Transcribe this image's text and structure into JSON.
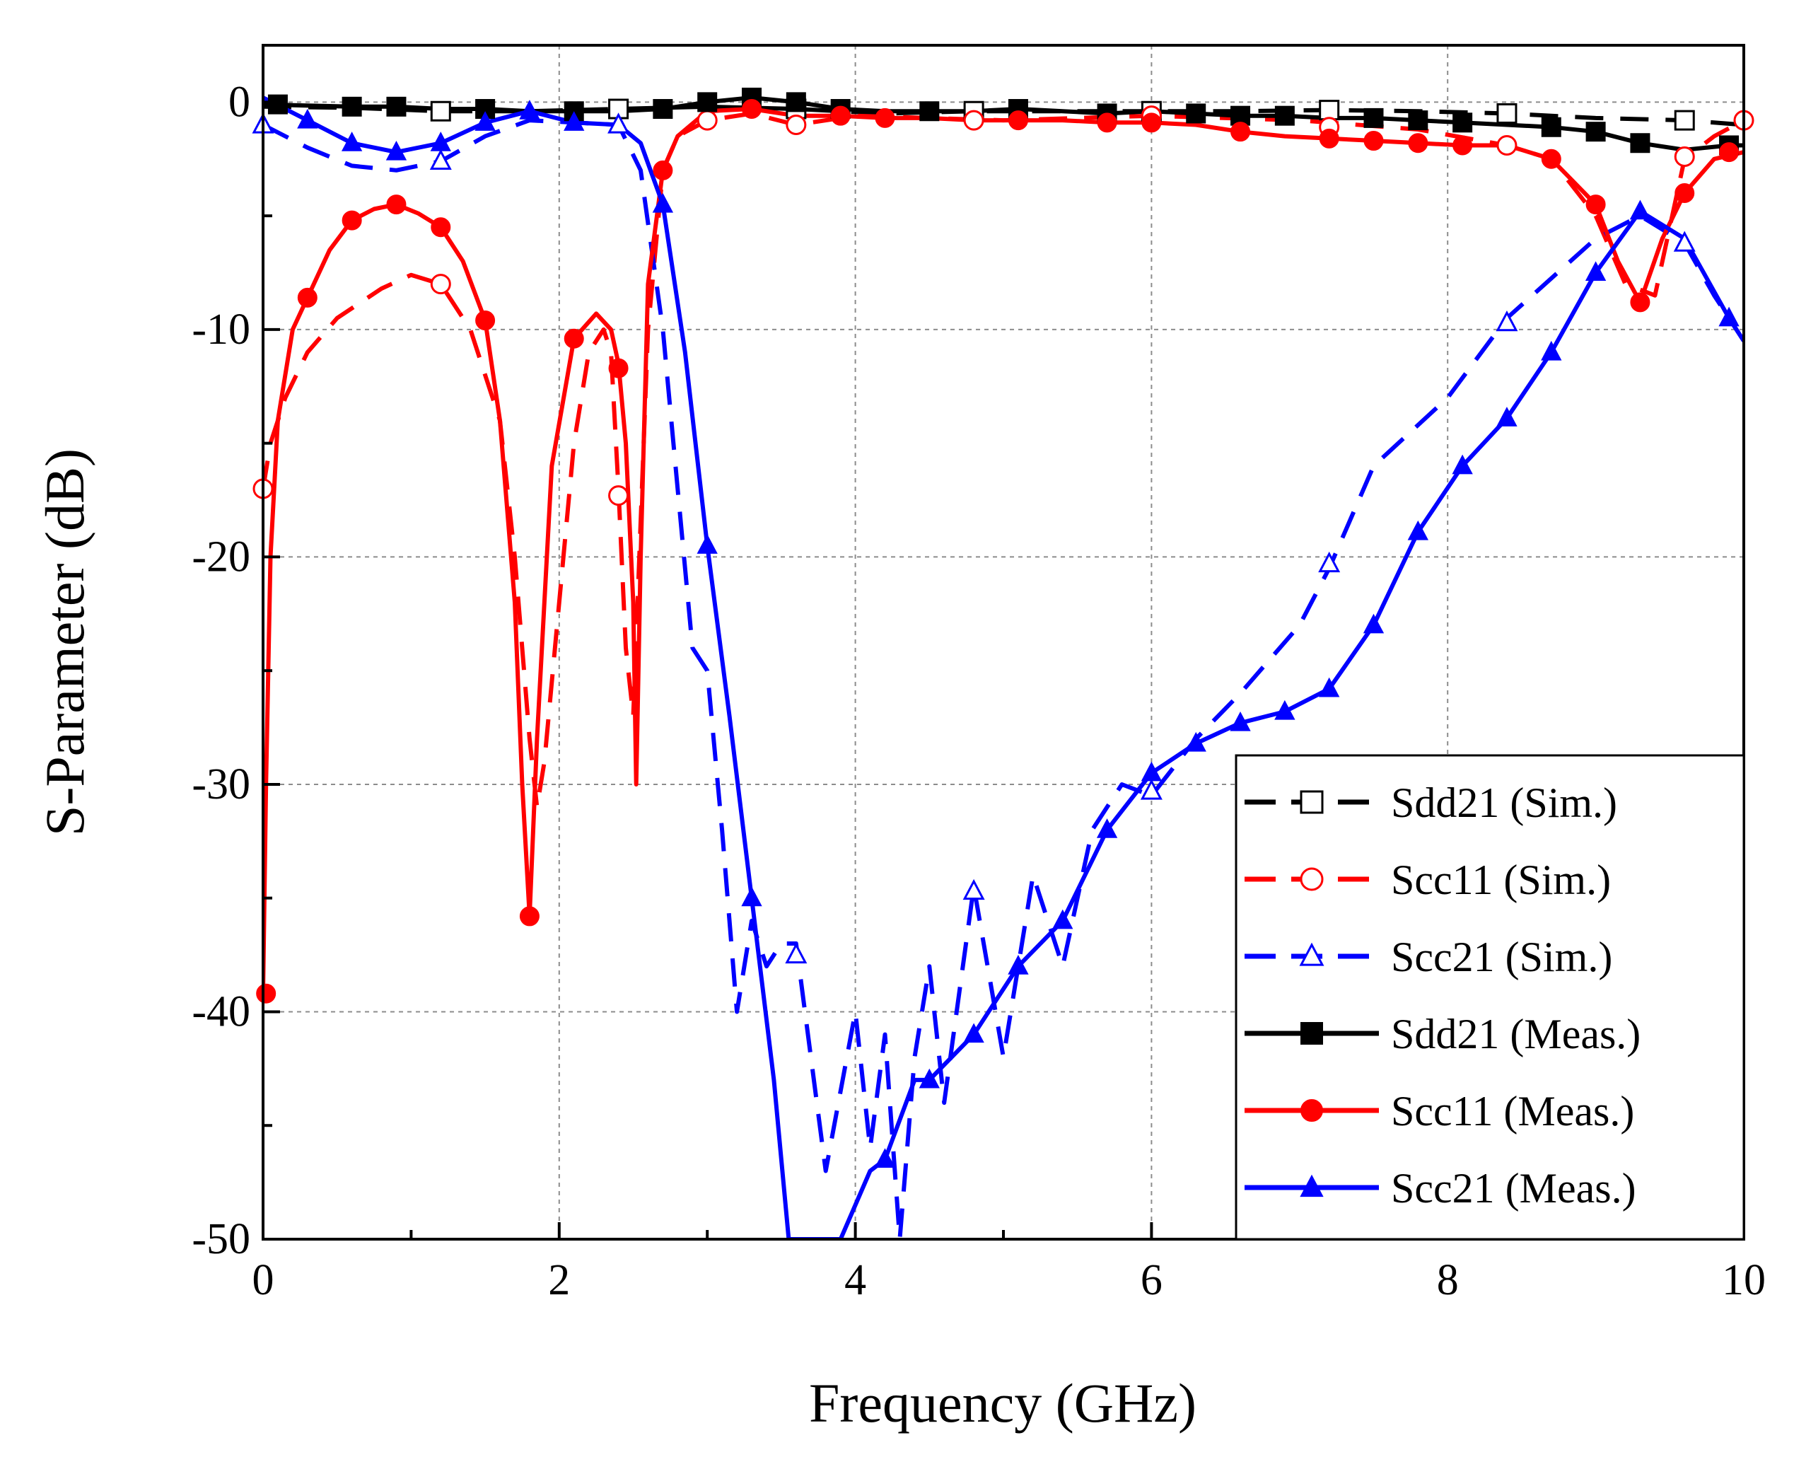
{
  "chart_data": {
    "type": "line",
    "title": "",
    "xlabel": "Frequency (GHz)",
    "ylabel": "S-Parameter (dB)",
    "xlim": [
      0,
      10
    ],
    "ylim": [
      -50,
      2.5
    ],
    "x_ticks": [
      0,
      2,
      4,
      6,
      8,
      10
    ],
    "x_tick_labels": [
      "0",
      "2",
      "4",
      "6",
      "8",
      "10"
    ],
    "y_ticks": [
      0,
      -10,
      -20,
      -30,
      -40,
      -50
    ],
    "y_tick_labels": [
      "0",
      "-10",
      "-20",
      "-30",
      "-40",
      "-50"
    ],
    "grid": true,
    "legend_position": "bottom-right",
    "series": [
      {
        "name": "Sdd21 (Sim.)",
        "color": "#000000",
        "dash": true,
        "marker": "square",
        "filled": false,
        "x": [
          0,
          0.6,
          1.2,
          1.8,
          2.4,
          3.0,
          3.6,
          4.2,
          4.8,
          5.4,
          6.0,
          6.6,
          7.2,
          7.8,
          8.4,
          9.0,
          9.6,
          10.0
        ],
        "y": [
          -0.2,
          -0.25,
          -0.4,
          -0.4,
          -0.3,
          -0.2,
          -0.3,
          -0.5,
          -0.4,
          -0.4,
          -0.4,
          -0.4,
          -0.35,
          -0.4,
          -0.5,
          -0.7,
          -0.8,
          -1.0
        ],
        "markers": [
          [
            1.2,
            -0.4
          ],
          [
            2.4,
            -0.3
          ],
          [
            3.6,
            -0.3
          ],
          [
            4.8,
            -0.4
          ],
          [
            6.0,
            -0.4
          ],
          [
            7.2,
            -0.35
          ],
          [
            8.4,
            -0.5
          ],
          [
            9.6,
            -0.8
          ]
        ]
      },
      {
        "name": "Scc11 (Sim.)",
        "color": "#ff0000",
        "dash": true,
        "marker": "circle",
        "filled": false,
        "x": [
          0,
          0.05,
          0.15,
          0.3,
          0.5,
          0.8,
          1.0,
          1.2,
          1.4,
          1.6,
          1.7,
          1.8,
          1.85,
          1.9,
          2.0,
          2.1,
          2.2,
          2.3,
          2.35,
          2.4,
          2.45,
          2.5,
          2.6,
          2.7,
          2.8,
          3.0,
          3.3,
          3.6,
          4.0,
          5.0,
          6.0,
          7.0,
          7.8,
          8.4,
          8.7,
          9.0,
          9.2,
          9.4,
          9.6,
          9.8,
          10.0
        ],
        "y": [
          -17,
          -15,
          -13,
          -11,
          -9.5,
          -8.2,
          -7.6,
          -8.0,
          -10,
          -14,
          -20,
          -28,
          -31,
          -29,
          -22,
          -15,
          -11,
          -10,
          -11,
          -17,
          -24,
          -27,
          -10,
          -3,
          -1.5,
          -0.8,
          -0.5,
          -1.0,
          -0.6,
          -0.8,
          -0.6,
          -0.8,
          -1.2,
          -1.9,
          -2.5,
          -5.0,
          -8.0,
          -8.5,
          -2.5,
          -1.5,
          -0.8
        ],
        "markers": [
          [
            0,
            -17
          ],
          [
            1.2,
            -8.0
          ],
          [
            2.4,
            -17.3
          ],
          [
            3.0,
            -0.8
          ],
          [
            3.6,
            -1.0
          ],
          [
            4.8,
            -0.8
          ],
          [
            6.0,
            -0.6
          ],
          [
            7.2,
            -1.1
          ],
          [
            8.4,
            -1.9
          ],
          [
            9.6,
            -2.4
          ],
          [
            10.0,
            -0.8
          ]
        ]
      },
      {
        "name": "Scc21 (Sim.)",
        "color": "#0000ff",
        "dash": true,
        "marker": "triangle",
        "filled": false,
        "x": [
          0,
          0.3,
          0.6,
          0.9,
          1.2,
          1.5,
          1.8,
          2.1,
          2.4,
          2.55,
          2.7,
          2.8,
          2.9,
          3.0,
          3.1,
          3.2,
          3.3,
          3.4,
          3.5,
          3.6,
          3.8,
          4.0,
          4.1,
          4.2,
          4.3,
          4.4,
          4.5,
          4.6,
          4.8,
          5.0,
          5.2,
          5.4,
          5.6,
          5.8,
          6.0,
          6.3,
          6.6,
          7.0,
          7.2,
          7.5,
          8.0,
          8.4,
          9.0,
          9.3,
          9.6,
          9.8,
          10.0
        ],
        "y": [
          -1.0,
          -2.0,
          -2.8,
          -3.0,
          -2.6,
          -1.5,
          -0.8,
          -0.9,
          -1.0,
          -3.0,
          -10,
          -17,
          -24,
          -25,
          -32,
          -40,
          -36,
          -38,
          -37,
          -37,
          -47,
          -40,
          -46,
          -41,
          -50,
          -42,
          -38,
          -44,
          -34.5,
          -42,
          -34,
          -38,
          -32,
          -30,
          -30.5,
          -28,
          -26,
          -23,
          -20.5,
          -16,
          -13,
          -9.5,
          -6.0,
          -5.0,
          -6.2,
          -8.5,
          -10.5
        ],
        "markers": [
          [
            0,
            -1.0
          ],
          [
            1.2,
            -2.6
          ],
          [
            2.4,
            -1.0
          ],
          [
            3.6,
            -37.5
          ],
          [
            4.8,
            -34.7
          ],
          [
            6.0,
            -30.3
          ],
          [
            7.2,
            -20.3
          ],
          [
            8.4,
            -9.7
          ],
          [
            9.6,
            -6.2
          ]
        ]
      },
      {
        "name": "Sdd21 (Meas.)",
        "color": "#000000",
        "dash": false,
        "marker": "square",
        "filled": true,
        "x": [
          0,
          0.3,
          0.6,
          0.9,
          1.2,
          1.5,
          1.8,
          2.1,
          2.4,
          2.7,
          3.0,
          3.3,
          3.6,
          3.9,
          4.2,
          4.5,
          4.8,
          5.1,
          5.4,
          5.7,
          6.0,
          6.3,
          6.6,
          6.9,
          7.2,
          7.5,
          7.8,
          8.1,
          8.4,
          8.7,
          9.0,
          9.3,
          9.6,
          9.9,
          10.0
        ],
        "y": [
          -0.1,
          -0.15,
          -0.2,
          -0.2,
          -0.3,
          -0.3,
          -0.4,
          -0.4,
          -0.4,
          -0.3,
          0.0,
          0.2,
          0.0,
          -0.3,
          -0.4,
          -0.4,
          -0.4,
          -0.3,
          -0.4,
          -0.5,
          -0.4,
          -0.5,
          -0.6,
          -0.6,
          -0.7,
          -0.7,
          -0.8,
          -0.9,
          -1.0,
          -1.1,
          -1.3,
          -1.8,
          -2.1,
          -1.9,
          -1.9
        ],
        "markers": [
          [
            0.1,
            -0.1
          ],
          [
            0.6,
            -0.2
          ],
          [
            0.9,
            -0.2
          ],
          [
            1.5,
            -0.3
          ],
          [
            2.1,
            -0.4
          ],
          [
            2.7,
            -0.3
          ],
          [
            3.0,
            0.0
          ],
          [
            3.3,
            0.2
          ],
          [
            3.6,
            0.0
          ],
          [
            3.9,
            -0.3
          ],
          [
            4.5,
            -0.4
          ],
          [
            5.1,
            -0.3
          ],
          [
            5.7,
            -0.5
          ],
          [
            6.3,
            -0.5
          ],
          [
            6.6,
            -0.6
          ],
          [
            6.9,
            -0.6
          ],
          [
            7.5,
            -0.7
          ],
          [
            7.8,
            -0.8
          ],
          [
            8.1,
            -0.9
          ],
          [
            8.7,
            -1.1
          ],
          [
            9.0,
            -1.3
          ],
          [
            9.3,
            -1.8
          ],
          [
            9.9,
            -1.9
          ]
        ]
      },
      {
        "name": "Scc11 (Meas.)",
        "color": "#ff0000",
        "dash": false,
        "marker": "circle",
        "filled": true,
        "x": [
          0,
          0.02,
          0.05,
          0.1,
          0.2,
          0.3,
          0.45,
          0.6,
          0.75,
          0.9,
          1.05,
          1.2,
          1.35,
          1.5,
          1.6,
          1.7,
          1.75,
          1.8,
          1.85,
          1.95,
          2.1,
          2.25,
          2.35,
          2.4,
          2.45,
          2.5,
          2.52,
          2.55,
          2.6,
          2.7,
          2.8,
          3.0,
          3.3,
          3.6,
          3.9,
          4.2,
          4.5,
          4.8,
          5.1,
          5.4,
          5.7,
          6.0,
          6.3,
          6.6,
          6.9,
          7.2,
          7.5,
          7.8,
          8.1,
          8.4,
          8.7,
          9.0,
          9.15,
          9.3,
          9.45,
          9.6,
          9.8,
          10.0
        ],
        "y": [
          -39.2,
          -30,
          -20,
          -14,
          -10,
          -8.6,
          -6.5,
          -5.2,
          -4.7,
          -4.5,
          -4.9,
          -5.5,
          -7.0,
          -9.6,
          -14,
          -22,
          -30,
          -35.8,
          -28,
          -16,
          -10.4,
          -9.3,
          -10,
          -11.5,
          -15,
          -22,
          -30,
          -20,
          -8,
          -3.0,
          -1.5,
          -0.4,
          -0.3,
          -0.6,
          -0.6,
          -0.7,
          -0.7,
          -0.8,
          -0.8,
          -0.8,
          -0.9,
          -0.9,
          -1.0,
          -1.3,
          -1.5,
          -1.6,
          -1.7,
          -1.8,
          -1.9,
          -1.9,
          -2.5,
          -4.5,
          -7.0,
          -8.8,
          -6.0,
          -4.0,
          -2.5,
          -2.2
        ],
        "markers": [
          [
            0.02,
            -39.2
          ],
          [
            0.3,
            -8.6
          ],
          [
            0.6,
            -5.2
          ],
          [
            0.9,
            -4.5
          ],
          [
            1.2,
            -5.5
          ],
          [
            1.5,
            -9.6
          ],
          [
            1.8,
            -35.8
          ],
          [
            2.1,
            -10.4
          ],
          [
            2.4,
            -11.7
          ],
          [
            2.7,
            -3.0
          ],
          [
            3.3,
            -0.3
          ],
          [
            3.9,
            -0.6
          ],
          [
            4.2,
            -0.7
          ],
          [
            5.1,
            -0.8
          ],
          [
            5.7,
            -0.9
          ],
          [
            6.0,
            -0.9
          ],
          [
            6.6,
            -1.3
          ],
          [
            7.2,
            -1.6
          ],
          [
            7.5,
            -1.7
          ],
          [
            7.8,
            -1.8
          ],
          [
            8.1,
            -1.9
          ],
          [
            8.7,
            -2.5
          ],
          [
            9.0,
            -4.5
          ],
          [
            9.3,
            -8.8
          ],
          [
            9.6,
            -4.0
          ],
          [
            9.9,
            -2.2
          ]
        ]
      },
      {
        "name": "Scc21 (Meas.)",
        "color": "#0000ff",
        "dash": false,
        "marker": "triangle",
        "filled": true,
        "x": [
          0,
          0.3,
          0.6,
          0.9,
          1.2,
          1.5,
          1.8,
          2.1,
          2.4,
          2.55,
          2.7,
          2.85,
          3.0,
          3.15,
          3.3,
          3.45,
          3.55,
          3.9,
          4.1,
          4.2,
          4.4,
          4.5,
          4.8,
          5.1,
          5.4,
          5.7,
          6.0,
          6.3,
          6.6,
          6.9,
          7.2,
          7.5,
          7.8,
          8.1,
          8.4,
          8.7,
          9.0,
          9.3,
          9.6,
          9.9,
          10.0
        ],
        "y": [
          0.2,
          -0.8,
          -1.8,
          -2.2,
          -1.8,
          -0.9,
          -0.4,
          -0.9,
          -1.0,
          -1.8,
          -4.5,
          -11,
          -19.5,
          -27,
          -35,
          -43,
          -50,
          -50,
          -47,
          -46.5,
          -43,
          -43,
          -41,
          -38,
          -36,
          -32,
          -29.5,
          -28.2,
          -27.3,
          -26.8,
          -25.8,
          -23,
          -18.9,
          -16,
          -13.9,
          -11,
          -7.5,
          -4.8,
          -6.0,
          -9.5,
          -10.5
        ],
        "markers": [
          [
            0.3,
            -0.8
          ],
          [
            0.6,
            -1.8
          ],
          [
            0.9,
            -2.2
          ],
          [
            1.2,
            -1.8
          ],
          [
            1.5,
            -0.9
          ],
          [
            1.8,
            -0.4
          ],
          [
            2.1,
            -0.9
          ],
          [
            2.7,
            -4.5
          ],
          [
            3.0,
            -19.5
          ],
          [
            3.3,
            -35
          ],
          [
            4.2,
            -46.5
          ],
          [
            4.5,
            -43
          ],
          [
            4.8,
            -41
          ],
          [
            5.1,
            -38
          ],
          [
            5.4,
            -36
          ],
          [
            5.7,
            -32
          ],
          [
            6.0,
            -29.5
          ],
          [
            6.3,
            -28.2
          ],
          [
            6.6,
            -27.3
          ],
          [
            6.9,
            -26.8
          ],
          [
            7.2,
            -25.8
          ],
          [
            7.5,
            -23
          ],
          [
            7.8,
            -18.9
          ],
          [
            8.1,
            -16
          ],
          [
            8.4,
            -13.9
          ],
          [
            8.7,
            -11
          ],
          [
            9.0,
            -7.5
          ],
          [
            9.3,
            -4.8
          ],
          [
            9.9,
            -9.5
          ]
        ]
      }
    ]
  }
}
